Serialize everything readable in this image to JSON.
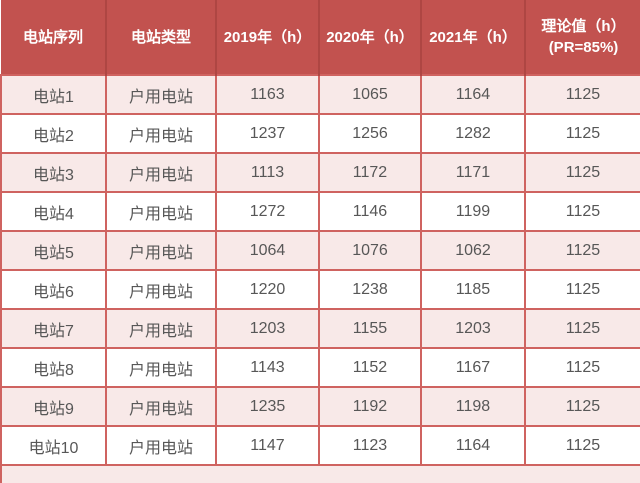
{
  "colors": {
    "header_bg": "#c2524f",
    "header_text": "#ffffff",
    "header_divider": "#ae4643",
    "row_pink": "#f8e9e8",
    "row_white": "#ffffff",
    "cell_border": "#cf6360",
    "bottom_border": "#c0504d",
    "body_text": "#575757"
  },
  "table": {
    "headers": [
      "电站序列",
      "电站类型",
      "2019年（h）",
      "2020年（h）",
      "2021年（h）",
      "理论值（h）\n(PR=85%)"
    ],
    "rows": [
      [
        "电站1",
        "户用电站",
        "1163",
        "1065",
        "1164",
        "1125"
      ],
      [
        "电站2",
        "户用电站",
        "1237",
        "1256",
        "1282",
        "1125"
      ],
      [
        "电站3",
        "户用电站",
        "1113",
        "1172",
        "1171",
        "1125"
      ],
      [
        "电站4",
        "户用电站",
        "1272",
        "1146",
        "1199",
        "1125"
      ],
      [
        "电站5",
        "户用电站",
        "1064",
        "1076",
        "1062",
        "1125"
      ],
      [
        "电站6",
        "户用电站",
        "1220",
        "1238",
        "1185",
        "1125"
      ],
      [
        "电站7",
        "户用电站",
        "1203",
        "1155",
        "1203",
        "1125"
      ],
      [
        "电站8",
        "户用电站",
        "1143",
        "1152",
        "1167",
        "1125"
      ],
      [
        "电站9",
        "户用电站",
        "1235",
        "1192",
        "1198",
        "1125"
      ],
      [
        "电站10",
        "户用电站",
        "1147",
        "1123",
        "1164",
        "1125"
      ]
    ],
    "ellipsis": "… …"
  }
}
